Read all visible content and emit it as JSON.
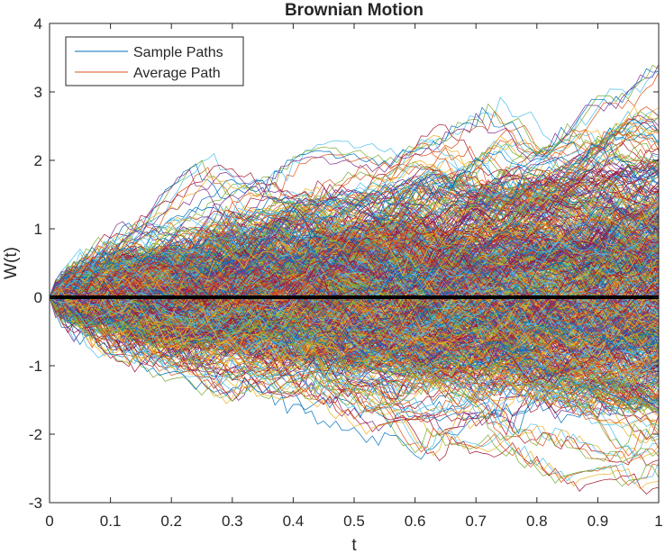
{
  "chart_data": {
    "type": "line",
    "title": "Brownian Motion",
    "xlabel": "t",
    "ylabel": "W(t)",
    "xlim": [
      0,
      1
    ],
    "ylim": [
      -3,
      4
    ],
    "xticks": [
      0,
      0.1,
      0.2,
      0.3,
      0.4,
      0.5,
      0.6,
      0.7,
      0.8,
      0.9,
      1
    ],
    "yticks": [
      -3,
      -2,
      -1,
      0,
      1,
      2,
      3,
      4
    ],
    "xtick_labels": [
      "0",
      "0.1",
      "0.2",
      "0.3",
      "0.4",
      "0.5",
      "0.6",
      "0.7",
      "0.8",
      "0.9",
      "1"
    ],
    "ytick_labels": [
      "-3",
      "-2",
      "-1",
      "0",
      "1",
      "2",
      "3",
      "4"
    ],
    "grid": false,
    "legend_position": "top-left",
    "series": [
      {
        "name": "Sample Paths",
        "color": "#0072BD",
        "kind": "random-walk-ensemble"
      },
      {
        "name": "Average Path",
        "color": "#D95319",
        "kind": "mean"
      }
    ],
    "palette": [
      "#0072BD",
      "#D95319",
      "#EDB120",
      "#7E2F8E",
      "#77AC30",
      "#4DBEEE",
      "#A2142F"
    ],
    "mean_line_color": "#000000",
    "mean_value": 0
  }
}
